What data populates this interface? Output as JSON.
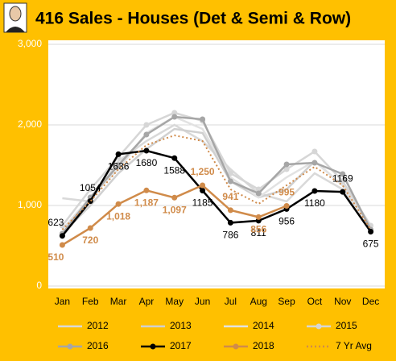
{
  "chart_data": {
    "type": "line",
    "title": "416 Sales  - Houses (Det & Semi & Row)",
    "categories": [
      "Jan",
      "Feb",
      "Mar",
      "Apr",
      "May",
      "Jun",
      "Jul",
      "Aug",
      "Sep",
      "Oct",
      "Nov",
      "Dec"
    ],
    "ylim": [
      0,
      3000
    ],
    "yticks": [
      0,
      {
        "value": 1000,
        "label": "1,000"
      },
      {
        "value": 2000,
        "label": "2,000"
      },
      {
        "value": 3000,
        "label": "3,000"
      }
    ],
    "grid": true,
    "legend": "bottom",
    "series": [
      {
        "name": "2012",
        "color": "#d9d9d9",
        "values": [
          1090,
          1050,
          1550,
          1800,
          2000,
          1800,
          1450,
          1150,
          1050,
          1400,
          1200,
          750
        ]
      },
      {
        "name": "2013",
        "color": "#d0d0d0",
        "values": [
          650,
          1000,
          1400,
          1700,
          1950,
          1900,
          1300,
          1100,
          1200,
          1550,
          1250,
          720
        ]
      },
      {
        "name": "2014",
        "color": "#e2e2e2",
        "values": [
          700,
          1100,
          1450,
          1900,
          2100,
          1950,
          1350,
          1100,
          1350,
          1550,
          1250,
          720
        ]
      },
      {
        "name": "2015",
        "color": "#d6d6d6",
        "markers": true,
        "values": [
          750,
          1200,
          1600,
          2000,
          2150,
          2050,
          1400,
          1200,
          1450,
          1670,
          1300,
          750
        ]
      },
      {
        "name": "2016",
        "color": "#a6a6a6",
        "markers": true,
        "values": [
          650,
          1100,
          1500,
          1880,
          2100,
          2070,
          1300,
          1150,
          1510,
          1530,
          1390,
          700
        ]
      },
      {
        "name": "2017",
        "color": "#000000",
        "markers": true,
        "labels": true,
        "values": [
          623,
          1054,
          1636,
          1680,
          1588,
          1185,
          786,
          811,
          956,
          1180,
          1169,
          675
        ]
      },
      {
        "name": "2018",
        "color": "#d08b4a",
        "markers": true,
        "labels": true,
        "values": [
          510,
          720,
          1018,
          1187,
          1097,
          1250,
          941,
          856,
          995,
          null,
          null,
          null
        ],
        "value_labels": [
          "510",
          "720",
          "1,018",
          "1,187",
          "1,097",
          "1,250",
          "941",
          "856",
          "995",
          null,
          null,
          null
        ]
      },
      {
        "name": "7 Yr Avg",
        "color": "#d08b4a",
        "dashed": true,
        "values": [
          700,
          1050,
          1450,
          1750,
          1870,
          1800,
          1200,
          1020,
          1250,
          1480,
          1250,
          700
        ]
      }
    ]
  }
}
